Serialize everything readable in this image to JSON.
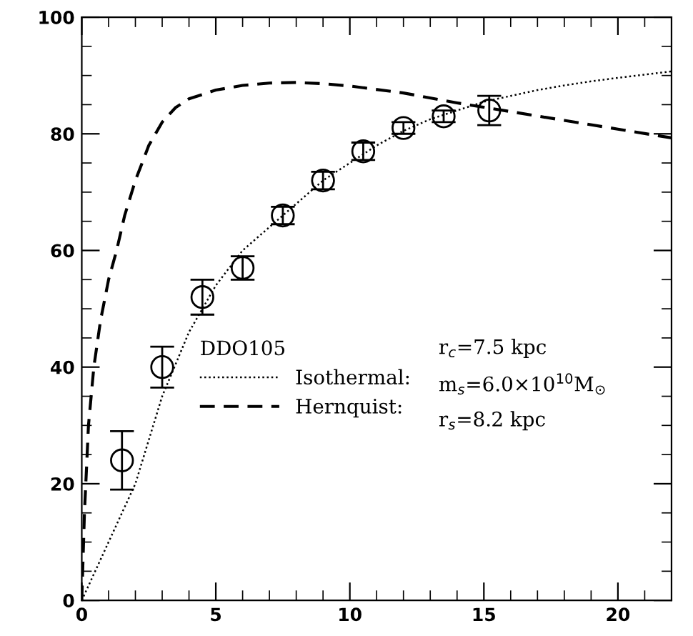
{
  "chart_data": {
    "type": "scatter",
    "xlim": [
      0,
      22
    ],
    "ylim": [
      0,
      100
    ],
    "xticks": [
      0,
      5,
      10,
      15,
      20
    ],
    "yticks": [
      0,
      20,
      40,
      60,
      80,
      100
    ],
    "grid": false,
    "legend": "center left",
    "legend_title": "DDO105",
    "series": [
      {
        "marker": "circle",
        "color": "#000000",
        "x": [
          1.5,
          3,
          4.5,
          6,
          7.5,
          9,
          10.5,
          12,
          13.5,
          15.2
        ],
        "values": [
          24,
          40,
          52,
          57,
          66,
          72,
          77,
          81,
          83,
          84
        ],
        "errors": [
          5,
          3.5,
          3,
          2,
          1.5,
          1.5,
          1.5,
          1,
          1,
          2.5
        ]
      },
      {
        "type": "line",
        "name": "Isothermal:",
        "line_style": "dotted",
        "marker": "none",
        "color": "#000000",
        "x": [
          0,
          1,
          2,
          3,
          4,
          5,
          6,
          7,
          8,
          9,
          10,
          11,
          12,
          13,
          14,
          15,
          16,
          17,
          18,
          19,
          20,
          22
        ],
        "values": [
          0,
          10,
          20,
          35,
          46,
          54,
          60,
          64,
          68,
          72,
          75,
          78,
          80.5,
          82.5,
          84,
          85.5,
          86.5,
          87.5,
          88.3,
          89,
          89.6,
          90.7
        ]
      },
      {
        "type": "line",
        "name": "Hernquist:",
        "line_style": "dashed",
        "marker": "none",
        "color": "#000000",
        "x": [
          0,
          0.1,
          0.25,
          0.45,
          0.7,
          1.0,
          1.3,
          1.6,
          2.0,
          2.5,
          3,
          3.5,
          4,
          5,
          6,
          7,
          8,
          9,
          10,
          12,
          14,
          16,
          18,
          20,
          22
        ],
        "values": [
          0,
          15,
          30,
          40,
          48,
          55,
          60,
          66,
          72,
          78,
          82,
          84.5,
          86,
          87.5,
          88.3,
          88.7,
          88.8,
          88.6,
          88.2,
          87,
          85.3,
          83.8,
          82.3,
          80.8,
          79.3
        ]
      }
    ],
    "annotations": [
      "r$_{c}$=7.5 kpc",
      "m$_{s}$=6.0×10$^{10}$M$_{⊙}$",
      "r$_{s}$=8.2 kpc"
    ]
  }
}
